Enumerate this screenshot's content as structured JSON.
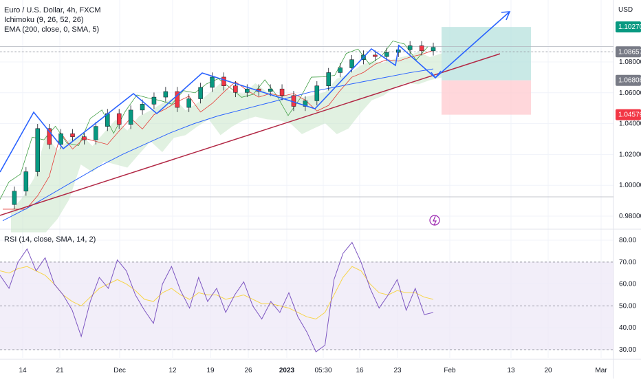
{
  "header": {
    "title": "Euro / U.S. Dollar, 4h, FXCM",
    "indicator_ichimoku": "Ichimoku (9, 26, 52, 26)",
    "indicator_ema": "EMA (200, close, 0, SMA, 5)",
    "currency": "USD"
  },
  "rsi_panel": {
    "label": "RSI (14, close, SMA, 14, 2)"
  },
  "chart_data": [
    {
      "type": "line",
      "panel": "price",
      "title": "Euro / U.S. Dollar, 4h, FXCM",
      "ylabel": "USD",
      "ylim": [
        0.97,
        1.12
      ],
      "y_ticks": [
        0.98,
        1.0,
        1.02,
        1.04,
        1.06,
        1.08
      ],
      "y_tick_labels": [
        "0.98000",
        "1.00000",
        "1.02000",
        "1.04000",
        "1.06000",
        "1.08000"
      ],
      "x_ticks": [
        "14",
        "21",
        "Dec",
        "12",
        "19",
        "26",
        "2023",
        "05:30",
        "16",
        "23",
        "Feb",
        "13",
        "20",
        "Mar"
      ],
      "price_labels": [
        {
          "value": 1.1027,
          "text": "1.10270",
          "color": "#089981"
        },
        {
          "value": 1.08657,
          "text": "1.08657",
          "color": "#787b86"
        },
        {
          "value": 1.06808,
          "text": "1.06808",
          "color": "#787b86"
        },
        {
          "value": 1.04579,
          "text": "1.04579",
          "color": "#f23645"
        }
      ],
      "series": [
        {
          "name": "EUR/USD",
          "color": "#131722",
          "values": [
            0.9875,
            0.9962,
            1.0088,
            1.0368,
            1.0265,
            1.0335,
            1.0315,
            1.0295,
            1.0382,
            1.0465,
            1.0395,
            1.0488,
            1.0526,
            1.0572,
            1.0608,
            1.0505,
            1.0561,
            1.0635,
            1.0702,
            1.0645,
            1.0602,
            1.0625,
            1.0608,
            1.0625,
            1.0582,
            1.0512,
            1.0548,
            1.0645,
            1.0731,
            1.0762,
            1.0815,
            1.0845,
            1.0835,
            1.0862,
            1.0879,
            1.0905,
            1.0872,
            1.0895
          ]
        },
        {
          "name": "EMA 200",
          "color": "#2962ff",
          "values": [
            0.977,
            0.985,
            0.994,
            1.003,
            1.012,
            1.02,
            1.027,
            1.034,
            1.04,
            1.045,
            1.049,
            1.053,
            1.057,
            1.061,
            1.064,
            1.067,
            1.07,
            1.073,
            1.0755
          ]
        }
      ]
    },
    {
      "type": "line",
      "panel": "rsi",
      "title": "RSI (14, close, SMA, 14, 2)",
      "ylim": [
        25,
        85
      ],
      "y_ticks": [
        30,
        40,
        50,
        60,
        70,
        80
      ],
      "y_tick_labels": [
        "30.00",
        "40.00",
        "50.00",
        "60.00",
        "70.00",
        "80.00"
      ],
      "bands": {
        "upper": 70,
        "middle": 50,
        "lower": 30
      },
      "series": [
        {
          "name": "RSI",
          "color": "#7e57c2",
          "values": [
            64,
            58,
            70,
            76,
            66,
            72,
            60,
            55,
            48,
            36,
            52,
            63,
            58,
            71,
            66,
            55,
            48,
            42,
            60,
            68,
            57,
            49,
            63,
            52,
            58,
            47,
            55,
            61,
            50,
            44,
            52,
            47,
            56,
            45,
            38,
            29,
            32,
            62,
            74,
            79,
            70,
            58,
            49,
            55,
            62,
            48,
            58,
            46,
            47
          ]
        },
        {
          "name": "RSI SMA",
          "color": "#f7d54a",
          "values": [
            66,
            65,
            67,
            68,
            66,
            64,
            60,
            55,
            52,
            50,
            54,
            58,
            60,
            62,
            60,
            57,
            53,
            52,
            56,
            58,
            55,
            53,
            56,
            55,
            55,
            53,
            54,
            55,
            53,
            51,
            51,
            50,
            49,
            47,
            45,
            44,
            47,
            55,
            63,
            68,
            66,
            60,
            56,
            55,
            57,
            56,
            56,
            54,
            53
          ]
        }
      ]
    }
  ],
  "colors": {
    "background": "#ffffff",
    "grid": "#f0f3fa",
    "candle_up": "#089981",
    "candle_down": "#f23645",
    "ema": "#2962ff",
    "trendline": "#b22845",
    "zigzag": "#2962ff",
    "kumo_fill": "#c8e6c9",
    "target_zone": "#b2dfdb",
    "stop_zone": "#ffcdd2",
    "rsi_band": "#ede7f6",
    "rsi_line": "#7e57c2",
    "rsi_sma": "#f7d54a"
  },
  "icons": {
    "event_marker": "lightning-icon"
  }
}
